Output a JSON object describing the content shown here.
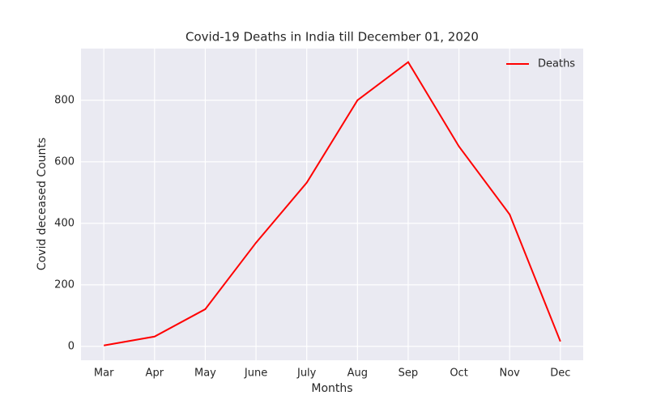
{
  "chart_data": {
    "type": "line",
    "title": "Covid-19 Deaths in India till December 01, 2020",
    "x_label": "Months",
    "y_label": "Covid  deceased  Counts",
    "categories": [
      "Mar",
      "Apr",
      "May",
      "June",
      "July",
      "Aug",
      "Sep",
      "Oct",
      "Nov",
      "Dec"
    ],
    "series": [
      {
        "name": "Deaths",
        "color": "#ff0000",
        "values": [
          3,
          32,
          121,
          337,
          532,
          800,
          924,
          650,
          429,
          16
        ]
      }
    ],
    "ylim": [
      -45,
      968
    ],
    "yticks": [
      0,
      200,
      400,
      600,
      800
    ],
    "grid": true,
    "legend": "upper right"
  }
}
